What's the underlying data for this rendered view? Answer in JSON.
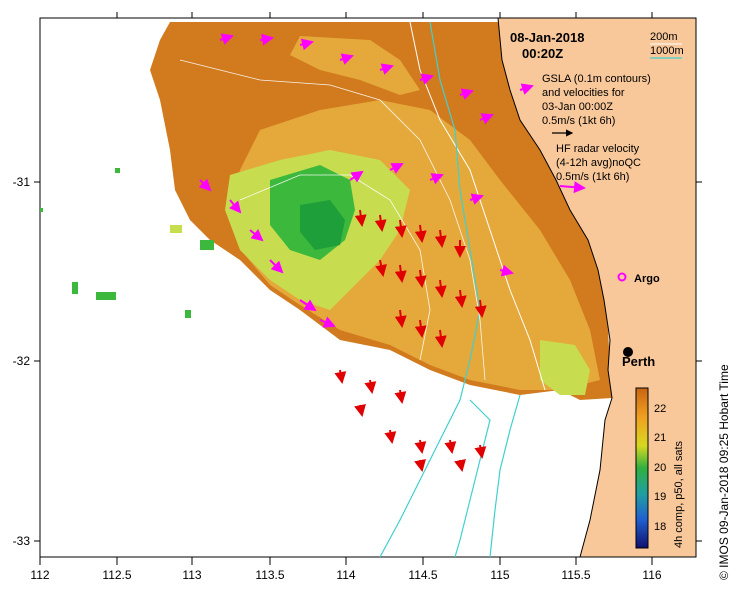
{
  "date": "08-Jan-2018",
  "time": "00:20Z",
  "legend": {
    "contour_200": "200m",
    "contour_1000": "1000m",
    "gsla_line1": "GSLA (0.1m contours)",
    "gsla_line2": "and velocities for",
    "gsla_line3": "03-Jan 00:00Z",
    "gsla_scale": "0.5m/s (1kt 6h)",
    "hf_line1": "HF radar velocity",
    "hf_line2": "(4-12h avg)noQC",
    "hf_scale": "0.5m/s (1kt 6h)"
  },
  "places": {
    "argo": "Argo",
    "perth": "Perth"
  },
  "colorbar": {
    "label": "4h comp, p50, all sats",
    "ticks": [
      "22",
      "21",
      "20",
      "19",
      "18"
    ],
    "colors": [
      "#d2691e",
      "#f0a020",
      "#d8d820",
      "#40c040",
      "#20a0a0",
      "#2060d0",
      "#101080"
    ]
  },
  "credit": "© IMOS 09-Jan-2018 09:25 Hobart Time",
  "axes": {
    "x_ticks": [
      "112",
      "112.5",
      "113",
      "113.5",
      "114",
      "114.5",
      "115",
      "115.5",
      "116"
    ],
    "y_ticks": [
      "-31",
      "-32",
      "-33"
    ]
  },
  "colors": {
    "land": "#f9c89a",
    "sst_warm": "#d27a1e",
    "sst_mid": "#e8b440",
    "sst_cool": "#c8dc50",
    "sst_green": "#3cb83c",
    "hf_arrow": "#ff00ff",
    "gsla_arrow": "#e00000",
    "isobath_200": "#ffffff",
    "isobath_1000": "#40d0d0"
  }
}
